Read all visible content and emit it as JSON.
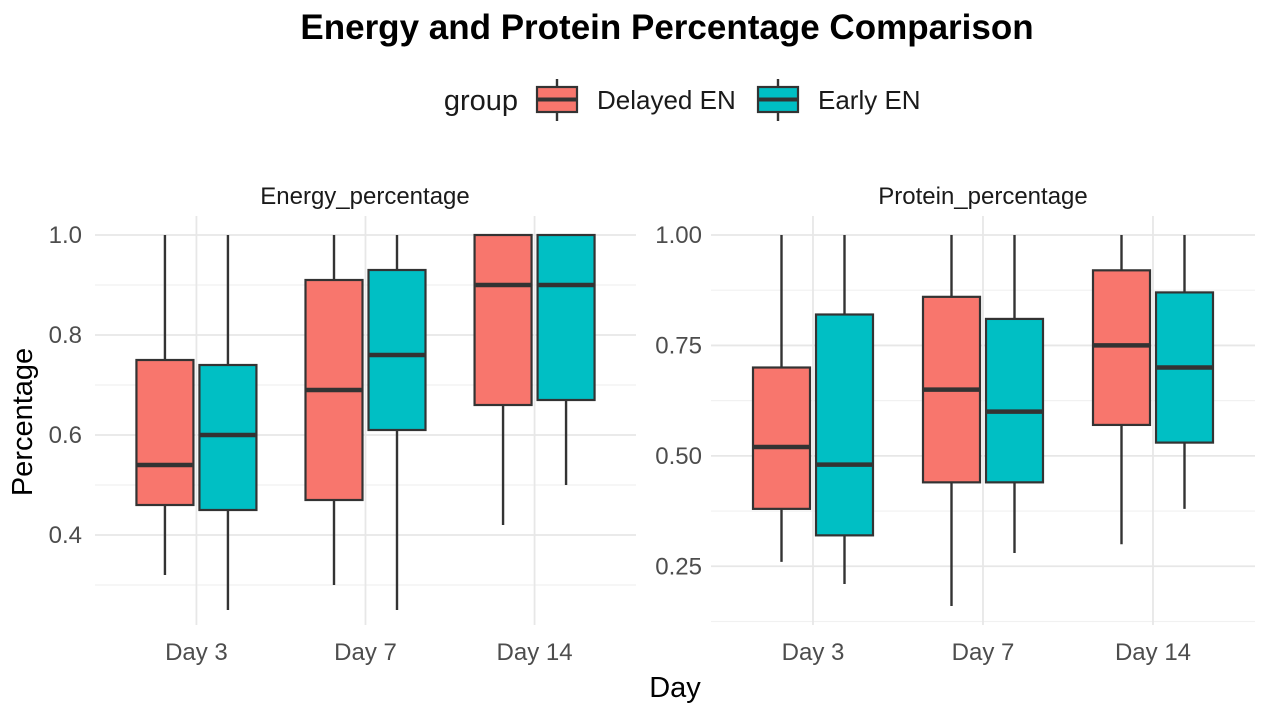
{
  "chart_data": {
    "type": "boxplot",
    "title": "Energy and Protein Percentage Comparison",
    "xlabel": "Day",
    "ylabel": "Percentage",
    "categories": [
      "Day 3",
      "Day 7",
      "Day 14"
    ],
    "legend": {
      "title": "group",
      "position": "top",
      "entries": [
        {
          "label": "Delayed EN",
          "color": "#F8766D"
        },
        {
          "label": "Early EN",
          "color": "#00BFC4"
        }
      ]
    },
    "style": {
      "box_border_color": "#333333",
      "grid_major_color": "#E7E7E7",
      "grid_minor_color": "#F1F1F1",
      "tick_label_color": "#4d4d4d",
      "background": "#FFFFFF"
    },
    "facets": [
      {
        "title": "Energy_percentage",
        "ylim": [
          0.212,
          1.038
        ],
        "y_major_breaks": [
          0.4,
          0.6,
          0.8,
          1.0
        ],
        "y_minor_breaks": [
          0.3,
          0.5,
          0.7,
          0.9
        ],
        "y_tick_labels": [
          {
            "value": 1.0,
            "label": "1.0"
          },
          {
            "value": 0.8,
            "label": "0.8"
          },
          {
            "value": 0.6,
            "label": "0.6"
          },
          {
            "value": 0.4,
            "label": "0.4"
          }
        ],
        "series": [
          {
            "name": "Delayed EN",
            "color": "#F8766D",
            "boxes": [
              {
                "category": "Day 3",
                "whisker_low": 0.32,
                "q1": 0.46,
                "median": 0.54,
                "q3": 0.75,
                "whisker_high": 1.0
              },
              {
                "category": "Day 7",
                "whisker_low": 0.3,
                "q1": 0.47,
                "median": 0.69,
                "q3": 0.91,
                "whisker_high": 1.0
              },
              {
                "category": "Day 14",
                "whisker_low": 0.42,
                "q1": 0.66,
                "median": 0.9,
                "q3": 1.0,
                "whisker_high": 1.0
              }
            ]
          },
          {
            "name": "Early EN",
            "color": "#00BFC4",
            "boxes": [
              {
                "category": "Day 3",
                "whisker_low": 0.25,
                "q1": 0.45,
                "median": 0.6,
                "q3": 0.74,
                "whisker_high": 1.0
              },
              {
                "category": "Day 7",
                "whisker_low": 0.25,
                "q1": 0.61,
                "median": 0.76,
                "q3": 0.93,
                "whisker_high": 1.0
              },
              {
                "category": "Day 14",
                "whisker_low": 0.5,
                "q1": 0.67,
                "median": 0.9,
                "q3": 1.0,
                "whisker_high": 1.0
              }
            ]
          }
        ]
      },
      {
        "title": "Protein_percentage",
        "ylim": [
          0.108,
          1.043
        ],
        "y_major_breaks": [
          0.25,
          0.5,
          0.75,
          1.0
        ],
        "y_minor_breaks": [
          0.125,
          0.375,
          0.625,
          0.875
        ],
        "y_tick_labels": [
          {
            "value": 1.0,
            "label": "1.00"
          },
          {
            "value": 0.75,
            "label": "0.75"
          },
          {
            "value": 0.5,
            "label": "0.50"
          },
          {
            "value": 0.25,
            "label": "0.25"
          }
        ],
        "series": [
          {
            "name": "Delayed EN",
            "color": "#F8766D",
            "boxes": [
              {
                "category": "Day 3",
                "whisker_low": 0.26,
                "q1": 0.38,
                "median": 0.52,
                "q3": 0.7,
                "whisker_high": 1.0
              },
              {
                "category": "Day 7",
                "whisker_low": 0.16,
                "q1": 0.44,
                "median": 0.65,
                "q3": 0.86,
                "whisker_high": 1.0
              },
              {
                "category": "Day 14",
                "whisker_low": 0.3,
                "q1": 0.57,
                "median": 0.75,
                "q3": 0.92,
                "whisker_high": 1.0
              }
            ]
          },
          {
            "name": "Early EN",
            "color": "#00BFC4",
            "boxes": [
              {
                "category": "Day 3",
                "whisker_low": 0.21,
                "q1": 0.32,
                "median": 0.48,
                "q3": 0.82,
                "whisker_high": 1.0
              },
              {
                "category": "Day 7",
                "whisker_low": 0.28,
                "q1": 0.44,
                "median": 0.6,
                "q3": 0.81,
                "whisker_high": 1.0
              },
              {
                "category": "Day 14",
                "whisker_low": 0.38,
                "q1": 0.53,
                "median": 0.7,
                "q3": 0.87,
                "whisker_high": 1.0
              }
            ]
          }
        ]
      }
    ]
  }
}
